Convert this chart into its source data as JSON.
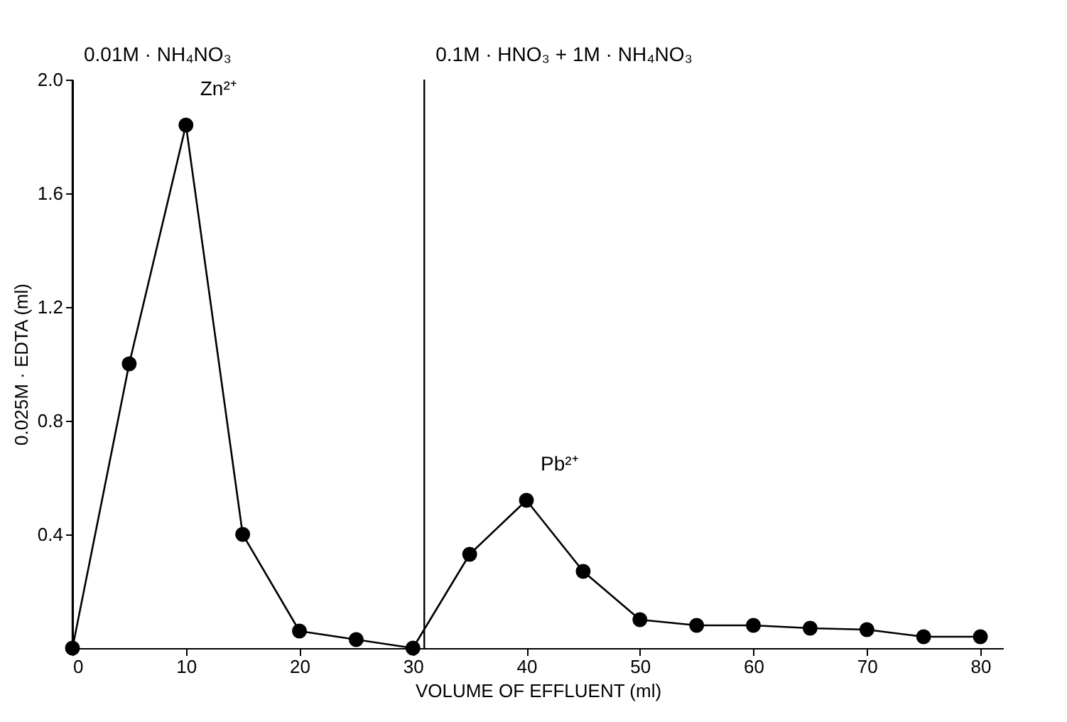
{
  "chart_data": {
    "type": "line",
    "xlabel": "VOLUME OF EFFLUENT (ml)",
    "ylabel": "0.025M · EDTA (ml)",
    "x": [
      0,
      5,
      10,
      15,
      20,
      25,
      30,
      35,
      40,
      45,
      50,
      55,
      60,
      65,
      70,
      75,
      80
    ],
    "series": [
      {
        "color": "#000000",
        "values": [
          0,
          1.0,
          1.84,
          0.4,
          0.06,
          0.03,
          0,
          0.33,
          0.52,
          0.27,
          0.1,
          0.08,
          0.08,
          0.07,
          0.065,
          0.04,
          0.04
        ]
      }
    ],
    "marker": "circle",
    "line_style": "solid",
    "grid": false,
    "xlim": [
      0,
      82
    ],
    "xticks": [
      0,
      10,
      20,
      30,
      40,
      50,
      60,
      70,
      80
    ],
    "ylim": [
      0,
      2.0
    ],
    "yticks": [
      0.4,
      0.8,
      1.2,
      1.6,
      {
        "value": 2.0,
        "label": "2.0"
      }
    ],
    "ref_lines": [
      {
        "axis": "x",
        "value": 0,
        "label": "0.01M · NH₄NO₃",
        "color": "#000000"
      },
      {
        "axis": "x",
        "value": 31,
        "label": "0.1M · HNO₃ + 1M · NH₄NO₃",
        "color": "#000000"
      }
    ],
    "annotations": [
      {
        "text": "Zn²⁺",
        "x": 10,
        "y": 1.84
      },
      {
        "text": "Pb²⁺",
        "x": 40,
        "y": 0.52
      }
    ]
  }
}
